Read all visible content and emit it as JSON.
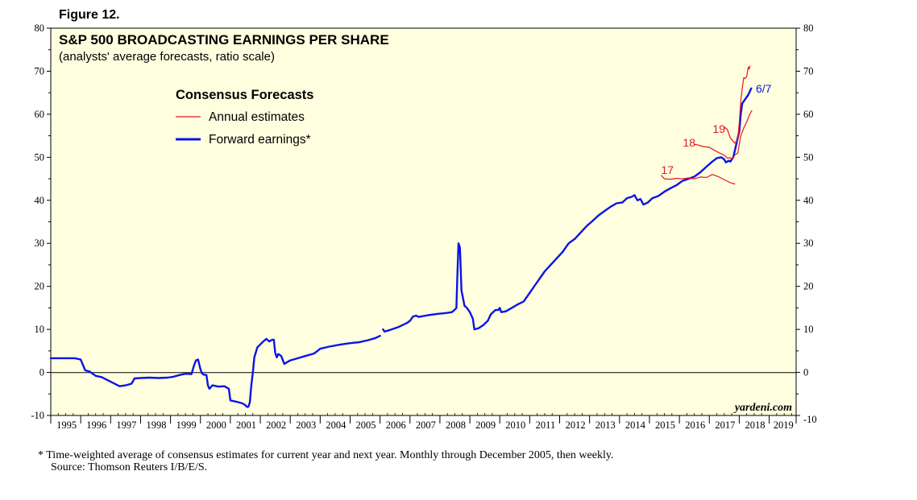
{
  "figure_label": "Figure 12.",
  "footnote_line1": "*  Time-weighted average of consensus estimates for current year and next year. Monthly through December 2005, then weekly.",
  "footnote_line2": "Source: Thomson Reuters I/B/E/S.",
  "watermark": "yardeni.com",
  "colors": {
    "plot_bg": "#ffffe0",
    "forward": "#0a14e6",
    "annual": "#e8141e",
    "axis": "#000000"
  },
  "chart_data": {
    "type": "line",
    "title": "S&P 500 BROADCASTING EARNINGS PER SHARE",
    "subtitle": "(analysts' average forecasts, ratio scale)",
    "xlabel": "",
    "ylabel": "",
    "xlim": [
      1995,
      2019.9
    ],
    "ylim": [
      -10,
      80
    ],
    "yticks": [
      -10,
      0,
      10,
      20,
      30,
      40,
      50,
      60,
      70,
      80
    ],
    "xtick_labels": [
      "1995",
      "1996",
      "1997",
      "1998",
      "1999",
      "2000",
      "2001",
      "2002",
      "2003",
      "2004",
      "2005",
      "2006",
      "2007",
      "2008",
      "2009",
      "2010",
      "2011",
      "2012",
      "2013",
      "2014",
      "2015",
      "2016",
      "2017",
      "2018",
      "2019"
    ],
    "legend": {
      "title": "Consensus Forecasts",
      "placement": "top-left",
      "entries": [
        "Annual estimates",
        "Forward earnings*"
      ]
    },
    "end_label": "6/7",
    "series": [
      {
        "name": "Forward earnings*",
        "points": [
          [
            1995.0,
            3.3
          ],
          [
            1995.5,
            3.3
          ],
          [
            1995.8,
            3.3
          ],
          [
            1996.0,
            3.0
          ],
          [
            1996.15,
            0.5
          ],
          [
            1996.3,
            0.2
          ],
          [
            1996.5,
            -0.8
          ],
          [
            1996.7,
            -1.1
          ],
          [
            1996.9,
            -1.8
          ],
          [
            1997.1,
            -2.5
          ],
          [
            1997.3,
            -3.2
          ],
          [
            1997.5,
            -3.0
          ],
          [
            1997.7,
            -2.6
          ],
          [
            1997.8,
            -1.4
          ],
          [
            1998.0,
            -1.3
          ],
          [
            1998.3,
            -1.2
          ],
          [
            1998.6,
            -1.3
          ],
          [
            1998.9,
            -1.2
          ],
          [
            1999.1,
            -1.0
          ],
          [
            1999.3,
            -0.6
          ],
          [
            1999.5,
            -0.3
          ],
          [
            1999.7,
            -0.4
          ],
          [
            1999.78,
            1.5
          ],
          [
            1999.85,
            2.8
          ],
          [
            1999.92,
            3.0
          ],
          [
            2000.0,
            0.8
          ],
          [
            2000.05,
            -0.2
          ],
          [
            2000.1,
            -0.5
          ],
          [
            2000.2,
            -0.6
          ],
          [
            2000.25,
            -3.0
          ],
          [
            2000.3,
            -3.8
          ],
          [
            2000.4,
            -3.0
          ],
          [
            2000.6,
            -3.3
          ],
          [
            2000.8,
            -3.2
          ],
          [
            2000.95,
            -3.8
          ],
          [
            2001.0,
            -6.5
          ],
          [
            2001.2,
            -6.8
          ],
          [
            2001.4,
            -7.2
          ],
          [
            2001.5,
            -7.6
          ],
          [
            2001.55,
            -8.0
          ],
          [
            2001.6,
            -8.0
          ],
          [
            2001.65,
            -7.0
          ],
          [
            2001.7,
            -3.0
          ],
          [
            2001.75,
            0.0
          ],
          [
            2001.8,
            3.5
          ],
          [
            2001.9,
            5.8
          ],
          [
            2002.0,
            6.5
          ],
          [
            2002.1,
            7.2
          ],
          [
            2002.2,
            7.8
          ],
          [
            2002.3,
            7.2
          ],
          [
            2002.4,
            7.6
          ],
          [
            2002.45,
            7.6
          ],
          [
            2002.5,
            4.5
          ],
          [
            2002.55,
            3.5
          ],
          [
            2002.6,
            4.3
          ],
          [
            2002.7,
            3.8
          ],
          [
            2002.8,
            2.0
          ],
          [
            2003.0,
            2.8
          ],
          [
            2003.2,
            3.2
          ],
          [
            2003.5,
            3.8
          ],
          [
            2003.8,
            4.4
          ],
          [
            2004.0,
            5.5
          ],
          [
            2004.3,
            6.0
          ],
          [
            2004.7,
            6.5
          ],
          [
            2005.0,
            6.8
          ],
          [
            2005.3,
            7.0
          ],
          [
            2005.6,
            7.5
          ],
          [
            2005.85,
            8.0
          ],
          [
            2006.0,
            8.5
          ]
        ]
      },
      {
        "name": "Forward earnings* (weekly)",
        "points": [
          [
            2006.1,
            10.0
          ],
          [
            2006.15,
            9.5
          ],
          [
            2006.3,
            9.8
          ],
          [
            2006.6,
            10.5
          ],
          [
            2006.9,
            11.5
          ],
          [
            2007.0,
            12.0
          ],
          [
            2007.1,
            13.0
          ],
          [
            2007.2,
            13.2
          ],
          [
            2007.3,
            12.9
          ],
          [
            2007.6,
            13.3
          ],
          [
            2007.9,
            13.6
          ],
          [
            2008.2,
            13.8
          ],
          [
            2008.4,
            14.0
          ],
          [
            2008.5,
            14.6
          ],
          [
            2008.55,
            15.0
          ],
          [
            2008.58,
            22.0
          ],
          [
            2008.62,
            30.0
          ],
          [
            2008.67,
            29.0
          ],
          [
            2008.72,
            19.0
          ],
          [
            2008.78,
            17.0
          ],
          [
            2008.82,
            15.5
          ],
          [
            2008.9,
            15.0
          ],
          [
            2009.0,
            14.0
          ],
          [
            2009.1,
            12.5
          ],
          [
            2009.15,
            10.0
          ],
          [
            2009.3,
            10.3
          ],
          [
            2009.45,
            11.0
          ],
          [
            2009.6,
            12.0
          ],
          [
            2009.7,
            13.5
          ],
          [
            2009.85,
            14.5
          ],
          [
            2009.95,
            14.5
          ],
          [
            2010.0,
            15.0
          ],
          [
            2010.05,
            14.0
          ],
          [
            2010.2,
            14.2
          ],
          [
            2010.4,
            15.0
          ],
          [
            2010.6,
            15.8
          ],
          [
            2010.8,
            16.5
          ],
          [
            2011.0,
            18.5
          ],
          [
            2011.2,
            20.5
          ],
          [
            2011.35,
            22.0
          ],
          [
            2011.5,
            23.5
          ],
          [
            2011.7,
            25.0
          ],
          [
            2011.9,
            26.5
          ],
          [
            2012.1,
            28.0
          ],
          [
            2012.3,
            30.0
          ],
          [
            2012.5,
            31.0
          ],
          [
            2012.7,
            32.5
          ],
          [
            2012.9,
            34.0
          ],
          [
            2013.1,
            35.2
          ],
          [
            2013.3,
            36.5
          ],
          [
            2013.5,
            37.5
          ],
          [
            2013.7,
            38.5
          ],
          [
            2013.9,
            39.3
          ],
          [
            2014.1,
            39.5
          ],
          [
            2014.25,
            40.5
          ],
          [
            2014.4,
            40.8
          ],
          [
            2014.5,
            41.2
          ],
          [
            2014.6,
            40.0
          ],
          [
            2014.7,
            40.3
          ],
          [
            2014.8,
            39.0
          ],
          [
            2014.95,
            39.5
          ],
          [
            2015.1,
            40.5
          ],
          [
            2015.3,
            41.0
          ],
          [
            2015.5,
            42.0
          ],
          [
            2015.7,
            42.8
          ],
          [
            2015.9,
            43.5
          ],
          [
            2016.1,
            44.5
          ],
          [
            2016.3,
            45.0
          ],
          [
            2016.5,
            45.5
          ],
          [
            2016.7,
            46.5
          ],
          [
            2016.9,
            47.8
          ],
          [
            2017.1,
            49.0
          ],
          [
            2017.25,
            49.8
          ],
          [
            2017.4,
            50.0
          ],
          [
            2017.5,
            49.5
          ],
          [
            2017.55,
            48.8
          ],
          [
            2017.65,
            49.2
          ],
          [
            2017.7,
            49.0
          ],
          [
            2017.8,
            50.0
          ],
          [
            2017.9,
            53.0
          ],
          [
            2018.0,
            56.0
          ],
          [
            2018.05,
            60.0
          ],
          [
            2018.1,
            62.5
          ],
          [
            2018.2,
            63.5
          ],
          [
            2018.3,
            64.5
          ],
          [
            2018.4,
            66.0
          ]
        ]
      },
      {
        "name": "Annual estimates 17",
        "label": "17",
        "points": [
          [
            2015.4,
            45.8
          ],
          [
            2015.5,
            45.0
          ],
          [
            2015.7,
            44.9
          ],
          [
            2015.9,
            45.1
          ],
          [
            2016.1,
            45.0
          ],
          [
            2016.3,
            45.2
          ],
          [
            2016.5,
            45.0
          ],
          [
            2016.7,
            45.4
          ],
          [
            2016.9,
            45.3
          ],
          [
            2017.1,
            46.0
          ],
          [
            2017.3,
            45.5
          ],
          [
            2017.5,
            44.8
          ],
          [
            2017.7,
            44.1
          ],
          [
            2017.85,
            43.8
          ]
        ]
      },
      {
        "name": "Annual estimates 18",
        "label": "18",
        "points": [
          [
            2016.5,
            53.0
          ],
          [
            2016.6,
            52.9
          ],
          [
            2016.8,
            52.5
          ],
          [
            2017.0,
            52.3
          ],
          [
            2017.2,
            51.5
          ],
          [
            2017.4,
            50.8
          ],
          [
            2017.5,
            50.5
          ],
          [
            2017.6,
            49.8
          ],
          [
            2017.7,
            49.9
          ],
          [
            2017.75,
            49.6
          ],
          [
            2017.85,
            50.5
          ],
          [
            2017.95,
            51.0
          ],
          [
            2018.05,
            55.0
          ],
          [
            2018.15,
            56.8
          ],
          [
            2018.25,
            58.2
          ],
          [
            2018.35,
            60.0
          ],
          [
            2018.42,
            60.8
          ]
        ]
      },
      {
        "name": "Annual estimates 19",
        "label": "19",
        "points": [
          [
            2017.5,
            57.0
          ],
          [
            2017.6,
            56.5
          ],
          [
            2017.7,
            54.5
          ],
          [
            2017.85,
            53.3
          ],
          [
            2017.95,
            54.0
          ],
          [
            2018.0,
            58.0
          ],
          [
            2018.05,
            63.0
          ],
          [
            2018.1,
            66.0
          ],
          [
            2018.15,
            68.5
          ],
          [
            2018.2,
            68.3
          ],
          [
            2018.25,
            68.8
          ],
          [
            2018.3,
            71.0
          ],
          [
            2018.33,
            70.5
          ],
          [
            2018.36,
            71.2
          ]
        ]
      }
    ]
  }
}
